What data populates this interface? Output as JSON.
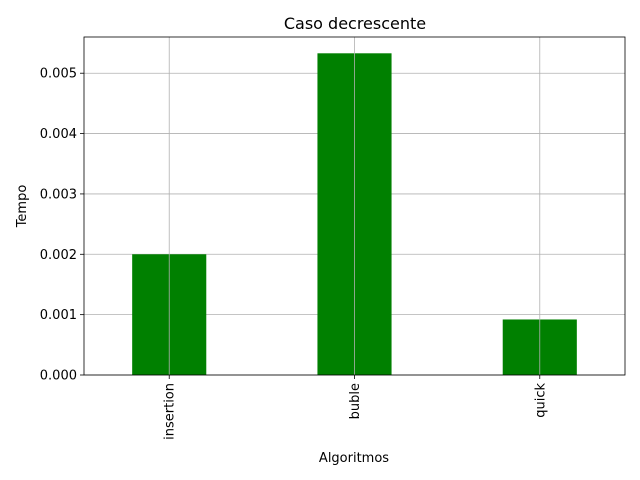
{
  "chart_data": {
    "type": "bar",
    "title": "Caso decrescente",
    "xlabel": "Algoritmos",
    "ylabel": "Tempo",
    "categories": [
      "insertion",
      "buble",
      "quick"
    ],
    "values": [
      0.002,
      0.00533,
      0.00092
    ],
    "ylim": [
      0,
      0.0056
    ],
    "yticks": [
      0.0,
      0.001,
      0.002,
      0.003,
      0.004,
      0.005
    ],
    "ytick_labels": [
      "0.000",
      "0.001",
      "0.002",
      "0.003",
      "0.004",
      "0.005"
    ],
    "bar_color": "#008000",
    "grid": true,
    "xtick_rotation": "vertical"
  }
}
